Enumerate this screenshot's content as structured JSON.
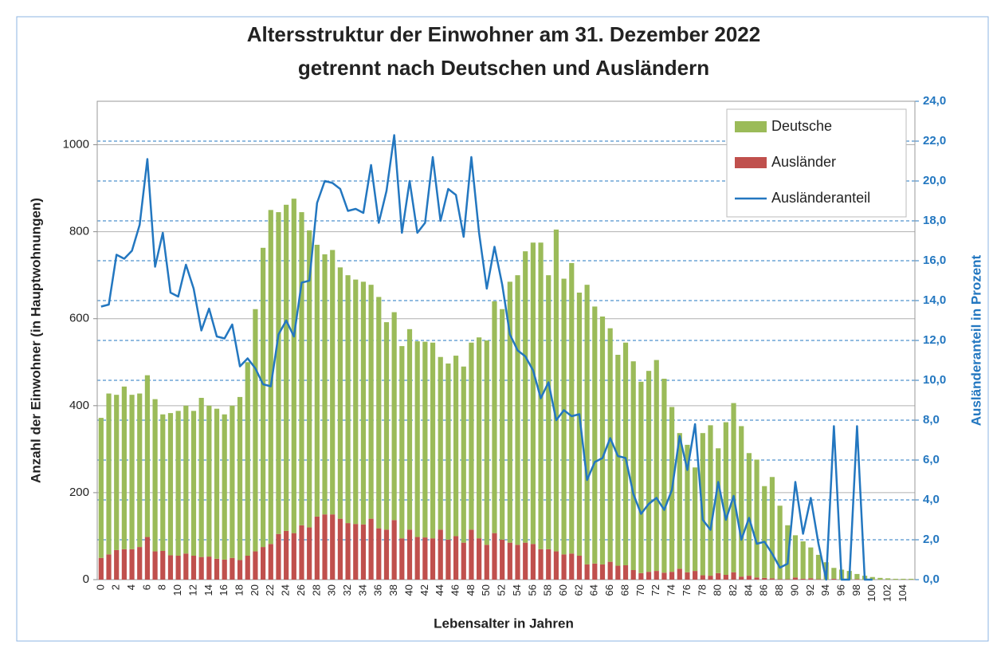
{
  "chart_data": {
    "type": "bar",
    "stacked": true,
    "title": [
      "Altersstruktur der Einwohner am 31. Dezember 2022",
      "getrennt nach Deutschen und Ausländern"
    ],
    "x_label": "Lebensalter in Jahren",
    "y_label": "Anzahl der Einwohner (in Hauptwohnungen)",
    "y2_label": "Ausländeranteil in Prozent",
    "categories": [
      "0",
      null,
      "2",
      null,
      "4",
      null,
      "6",
      null,
      "8",
      null,
      "10",
      null,
      "12",
      null,
      "14",
      null,
      "16",
      null,
      "18",
      null,
      "20",
      null,
      "22",
      null,
      "24",
      null,
      "26",
      null,
      "28",
      null,
      "30",
      null,
      "32",
      null,
      "34",
      null,
      "36",
      null,
      "38",
      null,
      "40",
      null,
      "42",
      null,
      "44",
      null,
      "46",
      null,
      "48",
      null,
      "50",
      null,
      "52",
      null,
      "54",
      null,
      "56",
      null,
      "58",
      null,
      "60",
      null,
      "62",
      null,
      "64",
      null,
      "66",
      null,
      "68",
      null,
      "70",
      null,
      "72",
      null,
      "74",
      null,
      "76",
      null,
      "78",
      null,
      "80",
      null,
      "82",
      null,
      "84",
      null,
      "86",
      null,
      "88",
      null,
      "90",
      null,
      "92",
      null,
      "94",
      null,
      "96",
      null,
      "98",
      null,
      "100",
      null,
      "102",
      null,
      "104",
      null
    ],
    "ylim": [
      0,
      1100
    ],
    "yticks": [
      0,
      200,
      400,
      600,
      800,
      1000
    ],
    "y2lim": [
      0,
      24
    ],
    "y2ticks": [
      {
        "value": 0,
        "label": "0,0"
      },
      {
        "value": 2,
        "label": "2,0"
      },
      {
        "value": 4,
        "label": "4,0"
      },
      {
        "value": 6,
        "label": "6,0"
      },
      {
        "value": 8,
        "label": "8,0"
      },
      {
        "value": 10,
        "label": "10,0"
      },
      {
        "value": 12,
        "label": "12,0"
      },
      {
        "value": 14,
        "label": "14,0"
      },
      {
        "value": 16,
        "label": "16,0"
      },
      {
        "value": 18,
        "label": "18,0"
      },
      {
        "value": 20,
        "label": "20,0"
      },
      {
        "value": 22,
        "label": "22,0"
      },
      {
        "value": 24,
        "label": "24,0"
      }
    ],
    "grid": true,
    "legend": "top-right",
    "series": [
      {
        "name": "Ausländer",
        "color": "#c0504d",
        "type": "bar",
        "values": [
          50,
          58,
          68,
          70,
          70,
          75,
          98,
          65,
          66,
          56,
          55,
          60,
          55,
          52,
          53,
          48,
          46,
          50,
          45,
          55,
          65,
          75,
          82,
          105,
          112,
          107,
          125,
          120,
          145,
          150,
          150,
          140,
          130,
          128,
          127,
          140,
          118,
          115,
          137,
          95,
          115,
          98,
          97,
          95,
          115,
          92,
          100,
          85,
          115,
          95,
          80,
          107,
          92,
          85,
          80,
          85,
          82,
          70,
          70,
          65,
          58,
          60,
          55,
          35,
          37,
          35,
          41,
          32,
          33,
          22,
          15,
          18,
          20,
          16,
          18,
          25,
          17,
          20,
          10,
          9,
          15,
          11,
          17,
          7,
          9,
          5,
          4,
          3,
          1,
          1,
          5,
          2,
          3,
          1,
          0,
          2,
          0,
          0,
          1,
          0,
          0,
          0,
          0,
          0,
          0,
          0
        ]
      },
      {
        "name": "Deutsche",
        "color": "#9bbb59",
        "type": "bar",
        "values": [
          322,
          370,
          357,
          374,
          355,
          353,
          372,
          350,
          314,
          327,
          333,
          340,
          333,
          366,
          347,
          345,
          334,
          350,
          375,
          445,
          557,
          688,
          768,
          740,
          750,
          769,
          720,
          683,
          625,
          598,
          608,
          578,
          570,
          562,
          558,
          538,
          532,
          477,
          478,
          442,
          461,
          450,
          450,
          450,
          397,
          405,
          415,
          405,
          430,
          462,
          470,
          533,
          530,
          600,
          620,
          670,
          693,
          705,
          630,
          740,
          634,
          668,
          605,
          643,
          591,
          570,
          537,
          485,
          512,
          480,
          440,
          462,
          485,
          446,
          379,
          312,
          293,
          238,
          327,
          346,
          287,
          351,
          389,
          346,
          282,
          271,
          211,
          233,
          169,
          124,
          97,
          86,
          71,
          56,
          40,
          25,
          23,
          20,
          12,
          9,
          6,
          4,
          3,
          2,
          2,
          2
        ]
      },
      {
        "name": "Ausländeranteil",
        "color": "#2377c0",
        "type": "line",
        "axis": "y2",
        "values": [
          13.7,
          13.8,
          16.3,
          16.1,
          16.5,
          17.8,
          21.1,
          15.7,
          17.4,
          14.4,
          14.2,
          15.8,
          14.6,
          12.5,
          13.6,
          12.2,
          12.1,
          12.8,
          10.7,
          11.1,
          10.6,
          9.8,
          9.7,
          12.3,
          13.0,
          12.2,
          14.9,
          15.0,
          18.9,
          20.0,
          19.9,
          19.6,
          18.5,
          18.6,
          18.4,
          20.8,
          17.9,
          19.5,
          22.3,
          17.4,
          20.0,
          17.4,
          17.9,
          21.2,
          18.0,
          19.6,
          19.3,
          17.2,
          21.2,
          17.4,
          14.6,
          16.7,
          14.8,
          12.3,
          11.5,
          11.2,
          10.5,
          9.1,
          9.9,
          8.0,
          8.5,
          8.2,
          8.3,
          5.0,
          5.9,
          6.1,
          7.1,
          6.2,
          6.1,
          4.3,
          3.3,
          3.8,
          4.1,
          3.5,
          4.5,
          7.2,
          5.5,
          7.8,
          3.0,
          2.5,
          4.9,
          3.0,
          4.2,
          2.0,
          3.1,
          1.8,
          1.9,
          1.3,
          0.6,
          0.8,
          4.9,
          2.3,
          4.1,
          1.8,
          0.0,
          7.7,
          0.0,
          0.0,
          7.7,
          0.0,
          0.0,
          null,
          null,
          null,
          null,
          null
        ]
      }
    ]
  }
}
